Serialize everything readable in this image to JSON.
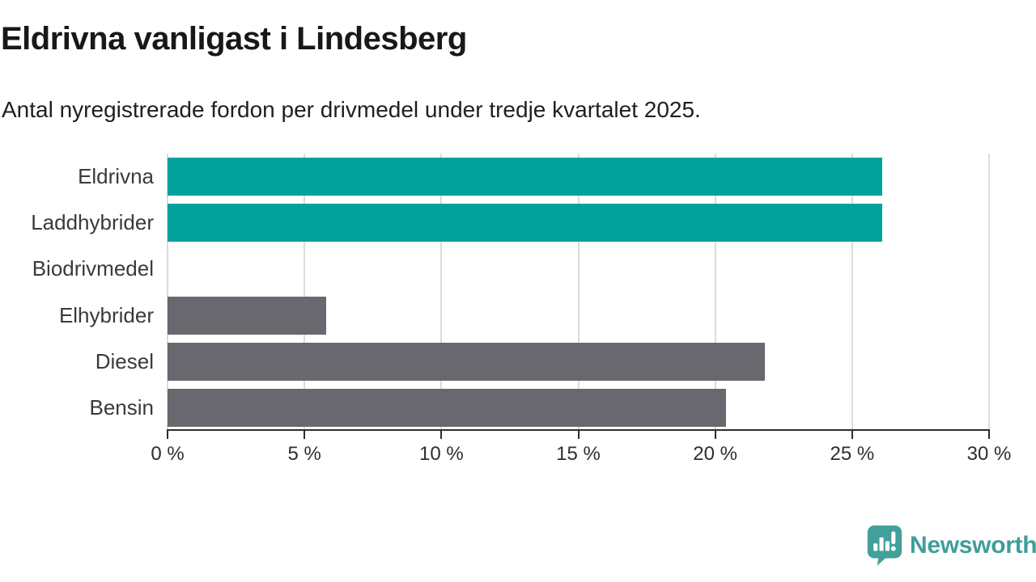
{
  "header": {
    "title": "Eldrivna vanligast i Lindesberg",
    "subtitle": "Antal nyregistrerade fordon per drivmedel under tredje kvartalet 2025."
  },
  "chart_data": {
    "type": "bar",
    "orientation": "horizontal",
    "categories": [
      "Eldrivna",
      "Laddhybrider",
      "Biodrivmedel",
      "Elhybrider",
      "Diesel",
      "Bensin"
    ],
    "values": [
      26.1,
      26.1,
      0,
      5.8,
      21.8,
      20.4
    ],
    "unit": "%",
    "bar_colors": [
      "#00a29b",
      "#00a29b",
      "#68686e",
      "#68686e",
      "#68686e",
      "#68686e"
    ],
    "xlim": [
      0,
      30
    ],
    "xticks": [
      0,
      5,
      10,
      15,
      20,
      25,
      30
    ],
    "xtick_labels": [
      "0 %",
      "5 %",
      "10 %",
      "15 %",
      "20 %",
      "25 %",
      "30 %"
    ],
    "grid": true,
    "legend": "none",
    "title": "Eldrivna vanligast i Lindesberg",
    "xlabel": "",
    "ylabel": ""
  },
  "footer": {
    "brand": "Newsworthy",
    "brand_color": "#3f9e99",
    "logo_icon": "newsworthy-speech-bubble-bar-chart-icon"
  },
  "colors": {
    "accent_teal": "#00a29b",
    "bar_gray": "#68686e",
    "gridline": "#dcdcdc",
    "axis": "#2e2e2e",
    "title_text": "#181818",
    "label_text": "#3a3a3a",
    "background": "#ffffff"
  }
}
